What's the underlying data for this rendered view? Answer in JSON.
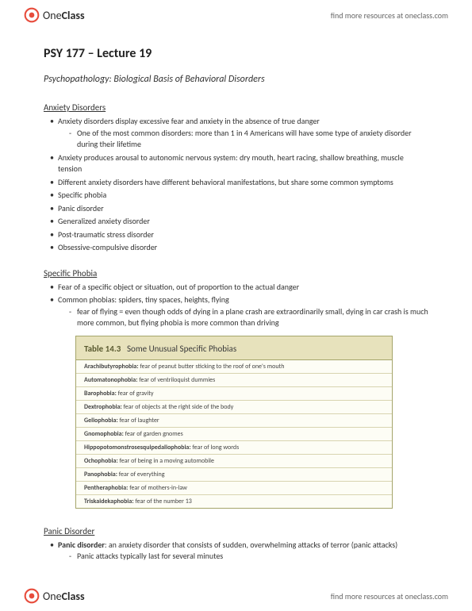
{
  "brand": {
    "name_prefix": "One",
    "name_suffix": "Class",
    "link_text": "find more resources at oneclass.com"
  },
  "title": "PSY 177 – Lecture 19",
  "subtitle": "Psychopathology: Biological Basis of Behavioral Disorders",
  "anxiety": {
    "heading": "Anxiety Disorders",
    "items": [
      {
        "text": "Anxiety disorders display excessive fear and anxiety in the absence of true danger",
        "sub": [
          "One of the most common disorders: more than 1 in 4 Americans will have some type of anxiety disorder during their lifetime"
        ]
      },
      {
        "text": "Anxiety produces arousal to autonomic nervous system: dry mouth, heart racing, shallow breathing, muscle tension"
      },
      {
        "text": "Different anxiety disorders have different behavioral manifestations, but share some common symptoms"
      },
      {
        "text": "Specific phobia"
      },
      {
        "text": "Panic disorder"
      },
      {
        "text": "Generalized anxiety disorder"
      },
      {
        "text": "Post-traumatic stress disorder"
      },
      {
        "text": "Obsessive-compulsive disorder"
      }
    ]
  },
  "phobia": {
    "heading": "Specific Phobia",
    "items": [
      {
        "text": "Fear of a specific object or situation, out of proportion to the actual danger"
      },
      {
        "text": "Common phobias: spiders, tiny spaces, heights, flying",
        "sub": [
          "fear of flying = even though odds of dying in a plane crash are extraordinarily small, dying in car crash is much more common, but flying phobia is more common than driving"
        ]
      }
    ]
  },
  "table": {
    "number": "Table 14.3",
    "title": "Some Unusual Specific Phobias",
    "header_bg": "#e7e2bc",
    "border_color": "#a5a56a",
    "row_border": "#d8d4b0",
    "bg": "#fdfdf5",
    "rows": [
      {
        "term": "Arachibutyrophobia:",
        "def": " fear of peanut butter sticking to the roof of one's mouth"
      },
      {
        "term": "Automatonophobia:",
        "def": " fear of ventriloquist dummies"
      },
      {
        "term": "Barophobia:",
        "def": " fear of gravity"
      },
      {
        "term": "Dextrophobia:",
        "def": " fear of objects at the right side of the body"
      },
      {
        "term": "Geliophobia:",
        "def": " fear of laughter"
      },
      {
        "term": "Gnomophobia:",
        "def": " fear of garden gnomes"
      },
      {
        "term": "Hippopotomonstrosesquipedaliophobia:",
        "def": " fear of long words"
      },
      {
        "term": "Ochophobia:",
        "def": " fear of being in a moving automobile"
      },
      {
        "term": "Panophobia:",
        "def": " fear of everything"
      },
      {
        "term": "Pentheraphobia:",
        "def": " fear of mothers-in-law"
      },
      {
        "term": "Triskaidekaphobia:",
        "def": " fear of the number 13"
      }
    ]
  },
  "panic": {
    "heading": "Panic Disorder",
    "item_prefix": "Panic disorder",
    "item_rest": ": an anxiety disorder that consists of sudden, overwhelming attacks of terror (panic attacks)",
    "sub": "Panic attacks typically last for several minutes"
  }
}
